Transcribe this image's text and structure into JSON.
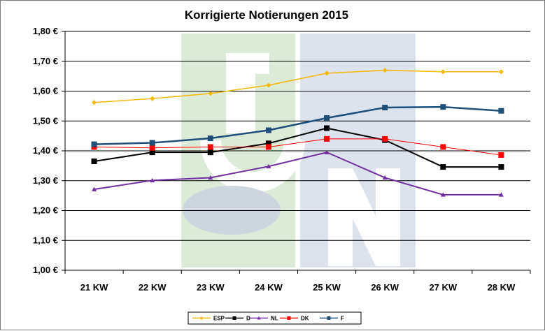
{
  "chart_data": {
    "type": "line",
    "title": "Korrigierte Notierungen 2015",
    "xlabel": "",
    "ylabel": "",
    "categories": [
      "21 KW",
      "22 KW",
      "23 KW",
      "24 KW",
      "25 KW",
      "26 KW",
      "27 KW",
      "28 KW"
    ],
    "ylim": [
      1.0,
      1.8
    ],
    "yticks": [
      1.0,
      1.1,
      1.2,
      1.3,
      1.4,
      1.5,
      1.6,
      1.7,
      1.8
    ],
    "ytick_labels": [
      "1,00 €",
      "1,10 €",
      "1,20 €",
      "1,30 €",
      "1,40 €",
      "1,50 €",
      "1,60 €",
      "1,70 €",
      "1,80 €"
    ],
    "grid": true,
    "legend_position": "bottom",
    "series": [
      {
        "name": "ESP",
        "color": "#f5b800",
        "marker": "diamond",
        "values": [
          1.562,
          1.575,
          1.592,
          1.62,
          1.66,
          1.67,
          1.665,
          1.665
        ]
      },
      {
        "name": "D",
        "color": "#000000",
        "marker": "square",
        "values": [
          1.365,
          1.395,
          1.395,
          1.425,
          1.476,
          1.436,
          1.346,
          1.346
        ]
      },
      {
        "name": "NL",
        "color": "#7030a0",
        "marker": "triangle",
        "values": [
          1.271,
          1.301,
          1.31,
          1.348,
          1.395,
          1.31,
          1.253,
          1.253
        ]
      },
      {
        "name": "DK",
        "color": "#ff0000",
        "marker": "square",
        "values": [
          1.413,
          1.41,
          1.413,
          1.413,
          1.44,
          1.44,
          1.413,
          1.386
        ]
      },
      {
        "name": "F",
        "color": "#1f4e79",
        "marker": "square",
        "values": [
          1.422,
          1.427,
          1.442,
          1.469,
          1.51,
          1.545,
          1.547,
          1.534
        ]
      }
    ]
  }
}
